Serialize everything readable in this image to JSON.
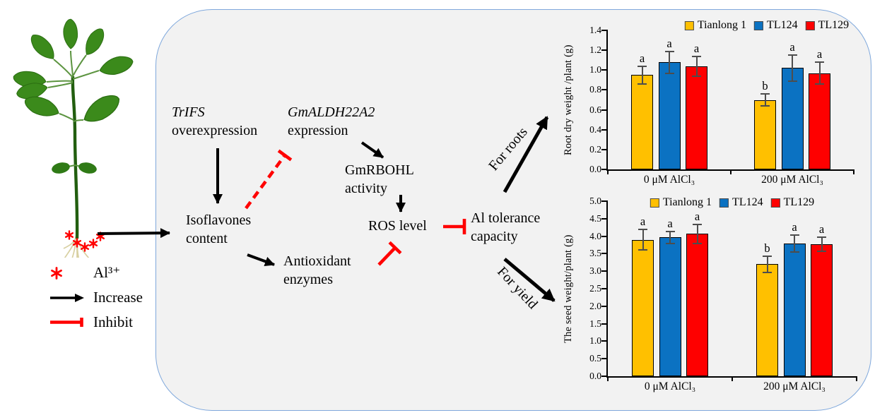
{
  "figure": {
    "background": "#FFFFFF",
    "panel": {
      "fill": "#F2F2F2",
      "border_color": "#7FA8DC"
    }
  },
  "plant": {
    "name": "soybean seedling with Al3+ asterisks at roots",
    "leaf_color": "#3B8A1B",
    "stem_color": "#225E0F",
    "root_color": "#D8D0A2",
    "asterisk_color": "#FF0000"
  },
  "key": {
    "items": [
      {
        "symbol": "asterisk-icon",
        "label": "Al³⁺"
      },
      {
        "symbol": "increase-arrow-icon",
        "label": "Increase"
      },
      {
        "symbol": "inhibit-tbar-icon",
        "label": "Inhibit"
      }
    ]
  },
  "pathway": {
    "colors": {
      "increase": "#000000",
      "inhibit": "#FF0000"
    },
    "nodes": {
      "trifs": {
        "gene": "TrIFS",
        "rest": "overexpression"
      },
      "gmaldh": {
        "gene": "GmALDH22A2",
        "rest": "expression"
      },
      "gmrbohl": {
        "line1": "GmRBOHL",
        "line2": "activity"
      },
      "isoflavones": {
        "line1": "Isoflavones",
        "line2": "content"
      },
      "antioxidant": {
        "line1": "Antioxidant",
        "line2": "enzymes"
      },
      "ros": {
        "label": "ROS level"
      },
      "tolerance": {
        "line1": "Al tolerance",
        "line2": "capacity"
      },
      "for_roots": {
        "label": "For roots"
      },
      "for_yield": {
        "label": "For yield"
      }
    }
  },
  "chart_data": [
    {
      "type": "bar",
      "title": "",
      "ylabel": "Root dry weight /plant  (g)",
      "xlabel": "",
      "ylim": [
        0,
        1.4
      ],
      "ytick_step": 0.2,
      "ytick_decimals": 1,
      "grid": false,
      "legend_position": "top",
      "categories": [
        "0 μM AlCl₃",
        "200 μM AlCl₃"
      ],
      "series": [
        {
          "name": "Tianlong 1",
          "color": "#FFC000",
          "values": [
            0.95,
            0.7
          ],
          "errors": [
            0.09,
            0.06
          ],
          "letters": [
            "a",
            "b"
          ]
        },
        {
          "name": "TL124",
          "color": "#0B72C2",
          "values": [
            1.08,
            1.02
          ],
          "errors": [
            0.11,
            0.13
          ],
          "letters": [
            "a",
            "a"
          ]
        },
        {
          "name": "TL129",
          "color": "#FE0000",
          "values": [
            1.04,
            0.97
          ],
          "errors": [
            0.1,
            0.11
          ],
          "letters": [
            "a",
            "a"
          ]
        }
      ]
    },
    {
      "type": "bar",
      "title": "",
      "ylabel": "The seed weight/plant  (g)",
      "xlabel": "",
      "ylim": [
        0,
        5.0
      ],
      "ytick_step": 0.5,
      "ytick_decimals": 1,
      "grid": false,
      "legend_position": "top",
      "categories": [
        "0 μM AlCl₃",
        "200 μM AlCl₃"
      ],
      "series": [
        {
          "name": "Tianlong 1",
          "color": "#FFC000",
          "values": [
            3.9,
            3.2
          ],
          "errors": [
            0.3,
            0.23
          ],
          "letters": [
            "a",
            "b"
          ]
        },
        {
          "name": "TL124",
          "color": "#0B72C2",
          "values": [
            3.97,
            3.79
          ],
          "errors": [
            0.17,
            0.25
          ],
          "letters": [
            "a",
            "a"
          ]
        },
        {
          "name": "TL129",
          "color": "#FE0000",
          "values": [
            4.07,
            3.77
          ],
          "errors": [
            0.27,
            0.2
          ],
          "letters": [
            "a",
            "a"
          ]
        }
      ]
    }
  ]
}
